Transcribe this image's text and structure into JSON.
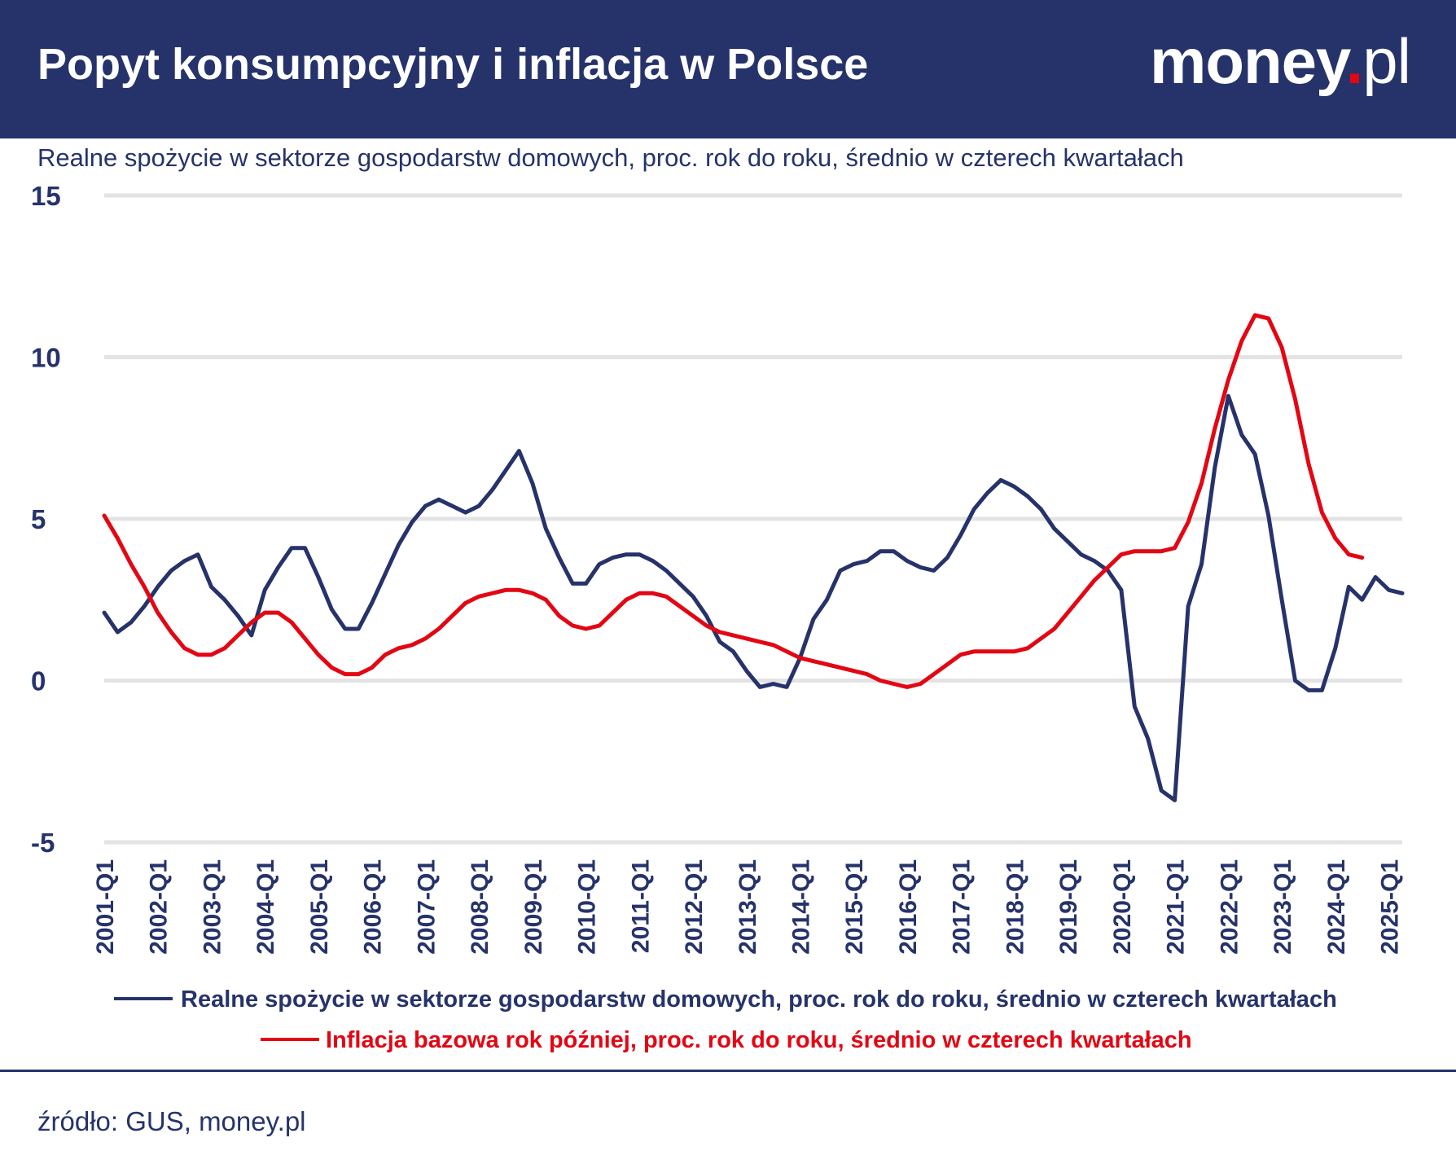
{
  "header": {
    "title": "Popyt konsumpcyjny i inflacja w Polsce",
    "logo_main": "money",
    "logo_dot": ".",
    "logo_suffix": "pl"
  },
  "subtitle": "Realne spożycie w sektorze gospodarstw domowych, proc. rok do roku, średnio w czterech kwartałach",
  "source": "źródło: GUS, money.pl",
  "colors": {
    "navy": "#26336b",
    "red": "#e30613",
    "grid": "#e3e3e3"
  },
  "chart_data": {
    "type": "line",
    "ylim": [
      -5,
      15
    ],
    "yticks": [
      -5,
      0,
      5,
      10,
      15
    ],
    "xlim": [
      "2001-Q1",
      "2025-Q2"
    ],
    "xticks": [
      "2001-Q1",
      "2002-Q1",
      "2003-Q1",
      "2004-Q1",
      "2005-Q1",
      "2006-Q1",
      "2007-Q1",
      "2008-Q1",
      "2009-Q1",
      "2010-Q1",
      "2011-Q1",
      "2012-Q1",
      "2013-Q1",
      "2014-Q1",
      "2015-Q1",
      "2016-Q1",
      "2017-Q1",
      "2018-Q1",
      "2019-Q1",
      "2020-Q1",
      "2021-Q1",
      "2022-Q1",
      "2023-Q1",
      "2024-Q1",
      "2025-Q1"
    ],
    "grid": true,
    "legend_position": "bottom",
    "series": [
      {
        "name": "Realne spożycie w sektorze gospodarstw domowych, proc. rok do roku, średnio w czterech kwartałach",
        "color": "#26336b",
        "start": "2001-Q1",
        "values": [
          2.1,
          1.5,
          1.8,
          2.3,
          2.9,
          3.4,
          3.7,
          3.9,
          2.9,
          2.5,
          2.0,
          1.4,
          2.8,
          3.5,
          4.1,
          4.1,
          3.2,
          2.2,
          1.6,
          1.6,
          2.4,
          3.3,
          4.2,
          4.9,
          5.4,
          5.6,
          5.4,
          5.2,
          5.4,
          5.9,
          6.5,
          7.1,
          6.1,
          4.7,
          3.8,
          3.0,
          3.0,
          3.6,
          3.8,
          3.9,
          3.9,
          3.7,
          3.4,
          3.0,
          2.6,
          2.0,
          1.2,
          0.9,
          0.3,
          -0.2,
          -0.1,
          -0.2,
          0.7,
          1.9,
          2.5,
          3.4,
          3.6,
          3.7,
          4.0,
          4.0,
          3.7,
          3.5,
          3.4,
          3.8,
          4.5,
          5.3,
          5.8,
          6.2,
          6.0,
          5.7,
          5.3,
          4.7,
          4.3,
          3.9,
          3.7,
          3.4,
          2.8,
          -0.8,
          -1.8,
          -3.4,
          -3.7,
          2.3,
          3.6,
          6.6,
          8.8,
          7.6,
          7.0,
          5.1,
          2.5,
          0.0,
          -0.3,
          -0.3,
          1.0,
          2.9,
          2.5,
          3.2,
          2.8,
          2.7
        ]
      },
      {
        "name": "Inflacja bazowa rok później, proc. rok do roku, średnio w czterech kwartałach",
        "color": "#e30613",
        "start": "2001-Q1",
        "values": [
          5.1,
          4.4,
          3.6,
          2.9,
          2.1,
          1.5,
          1.0,
          0.8,
          0.8,
          1.0,
          1.4,
          1.8,
          2.1,
          2.1,
          1.8,
          1.3,
          0.8,
          0.4,
          0.2,
          0.2,
          0.4,
          0.8,
          1.0,
          1.1,
          1.3,
          1.6,
          2.0,
          2.4,
          2.6,
          2.7,
          2.8,
          2.8,
          2.7,
          2.5,
          2.0,
          1.7,
          1.6,
          1.7,
          2.1,
          2.5,
          2.7,
          2.7,
          2.6,
          2.3,
          2.0,
          1.7,
          1.5,
          1.4,
          1.3,
          1.2,
          1.1,
          0.9,
          0.7,
          0.6,
          0.5,
          0.4,
          0.3,
          0.2,
          0.0,
          -0.1,
          -0.2,
          -0.1,
          0.2,
          0.5,
          0.8,
          0.9,
          0.9,
          0.9,
          0.9,
          1.0,
          1.3,
          1.6,
          2.1,
          2.6,
          3.1,
          3.5,
          3.9,
          4.0,
          4.0,
          4.0,
          4.1,
          4.9,
          6.1,
          7.8,
          9.3,
          10.5,
          11.3,
          11.2,
          10.3,
          8.7,
          6.7,
          5.2,
          4.4,
          3.9,
          3.8
        ]
      }
    ]
  }
}
